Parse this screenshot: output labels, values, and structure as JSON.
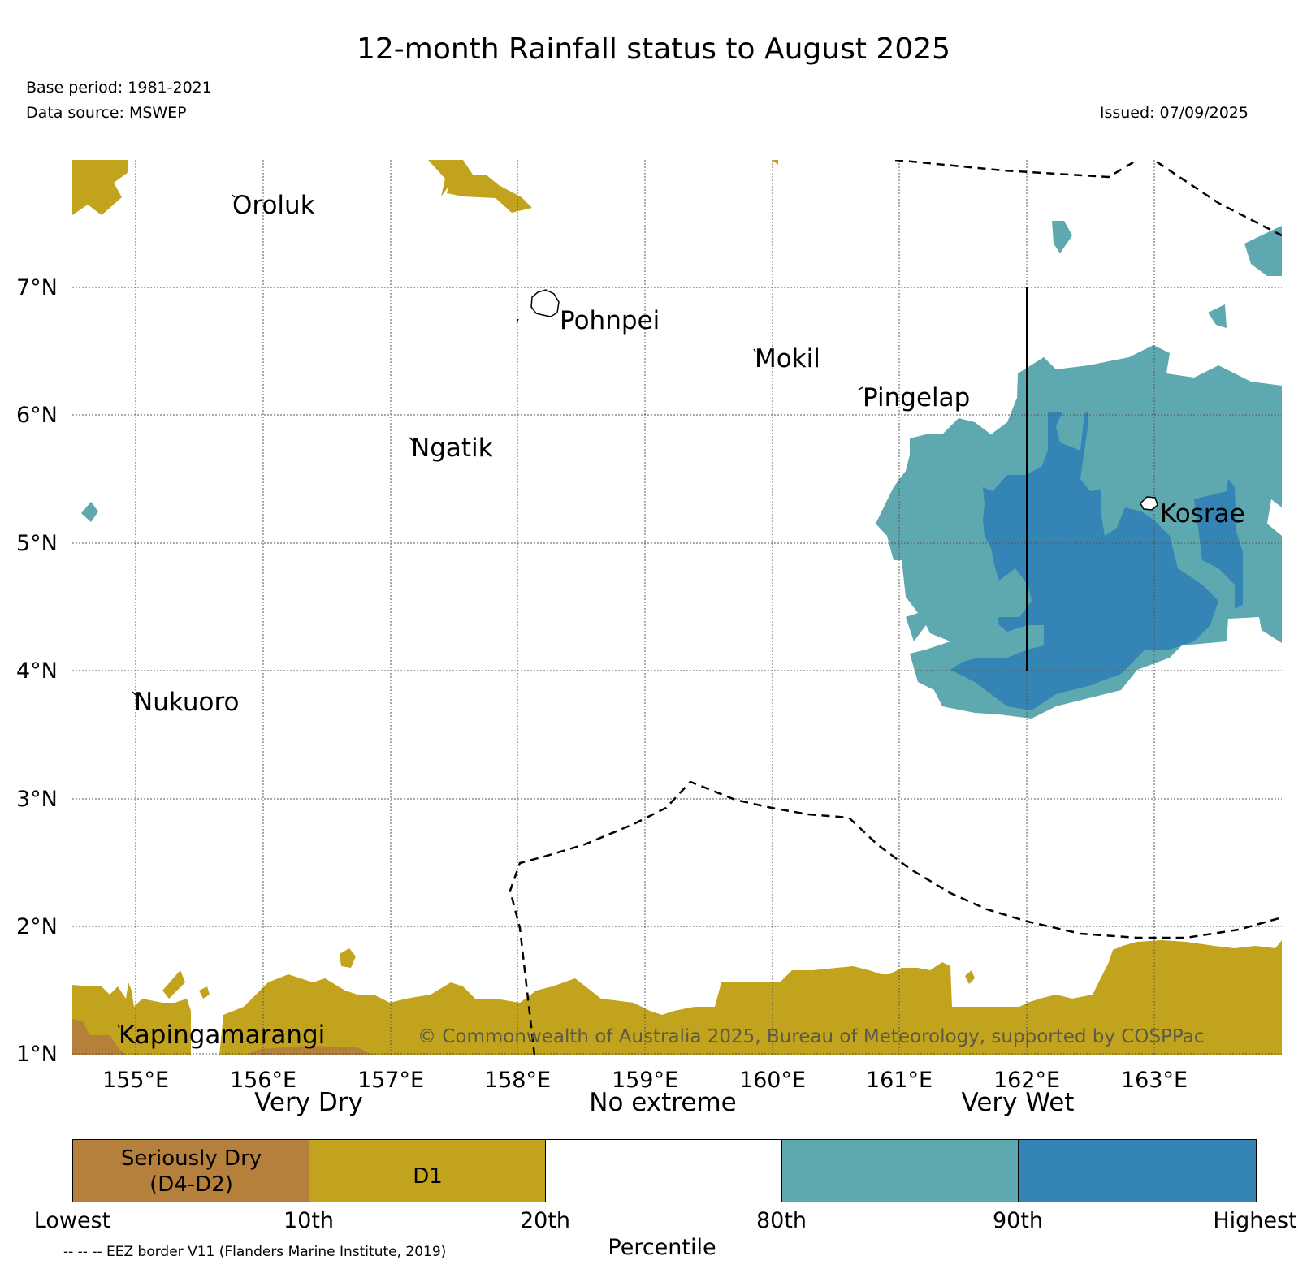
{
  "header": {
    "title": "12-month Rainfall status to August 2025",
    "base_period": "Base period: 1981-2021",
    "data_source": "Data source: MSWEP",
    "issued": "Issued: 07/09/2025"
  },
  "map": {
    "lat_labels": [
      "7°N",
      "6°N",
      "5°N",
      "4°N",
      "3°N",
      "2°N",
      "1°N"
    ],
    "lon_labels": [
      "155°E",
      "156°E",
      "157°E",
      "158°E",
      "159°E",
      "160°E",
      "161°E",
      "162°E",
      "163°E"
    ],
    "places": {
      "oroluk": "Oroluk",
      "pohnpei": "Pohnpei",
      "mokil": "Mokil",
      "pingelap": "Pingelap",
      "ngatik": "Ngatik",
      "kosrae": "Kosrae",
      "nukuoro": "Nukuoro",
      "kapingamarangi": "Kapingamarangi"
    },
    "copyright": "© Commonwealth of Australia 2025, Bureau of Meteorology, supported by COSPPac",
    "colors": {
      "seriously_dry": "#b5803c",
      "d1": "#c2a31e",
      "very_wet_80": "#5ea8b0",
      "very_wet_90": "#3485b6"
    }
  },
  "legend": {
    "categories": [
      "Very Dry",
      "No extreme",
      "Very Wet"
    ],
    "boxes": {
      "seriously_dry_line1": "Seriously Dry",
      "seriously_dry_line2": "(D4-D2)",
      "d1": "D1"
    },
    "percentiles": [
      "Lowest",
      "10th",
      "20th",
      "80th",
      "90th",
      "Highest"
    ],
    "xlabel": "Percentile",
    "eez_note": "-- -- -- EEZ border V11 (Flanders Marine Institute, 2019)"
  }
}
